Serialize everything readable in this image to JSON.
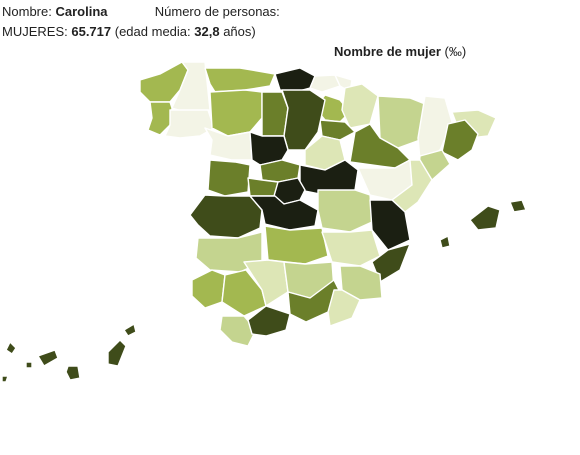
{
  "header": {
    "name_label": "Nombre:",
    "name_value": "Carolina",
    "count_label": "Número de personas:",
    "women_label": "MUJERES:",
    "women_value": "65.717",
    "age_prefix": "(edad media:",
    "age_value": "32,8",
    "age_suffix": "años)"
  },
  "legend": {
    "title_bold": "Nombre de mujer",
    "title_unit": "(‰)"
  },
  "colors": {
    "level1": "#f3f4e6",
    "level2": "#dde6b6",
    "level3": "#c4d48f",
    "level4": "#a3b850",
    "level5": "#6b7f2a",
    "level6": "#3f4c1a",
    "level7": "#1b1f12"
  },
  "regions": [
    {
      "name": "A Coruña",
      "level": 4
    },
    {
      "name": "Lugo",
      "level": 1
    },
    {
      "name": "Pontevedra",
      "level": 4
    },
    {
      "name": "Ourense",
      "level": 1
    },
    {
      "name": "Asturias",
      "level": 4
    },
    {
      "name": "Cantabria",
      "level": 7
    },
    {
      "name": "Vizcaya",
      "level": 1
    },
    {
      "name": "Guipúzcoa",
      "level": 1
    },
    {
      "name": "Álava",
      "level": 4
    },
    {
      "name": "Navarra",
      "level": 2
    },
    {
      "name": "La Rioja",
      "level": 5
    },
    {
      "name": "León",
      "level": 4
    },
    {
      "name": "Palencia",
      "level": 5
    },
    {
      "name": "Burgos",
      "level": 6
    },
    {
      "name": "Huesca",
      "level": 3
    },
    {
      "name": "Lleida",
      "level": 1
    },
    {
      "name": "Girona",
      "level": 2
    },
    {
      "name": "Barcelona",
      "level": 5
    },
    {
      "name": "Tarragona",
      "level": 3
    },
    {
      "name": "Zamora",
      "level": 1
    },
    {
      "name": "Valladolid",
      "level": 7
    },
    {
      "name": "Soria",
      "level": 2
    },
    {
      "name": "Zaragoza",
      "level": 5
    },
    {
      "name": "Salamanca",
      "level": 5
    },
    {
      "name": "Segovia",
      "level": 5
    },
    {
      "name": "Ávila",
      "level": 5
    },
    {
      "name": "Guadalajara",
      "level": 7
    },
    {
      "name": "Teruel",
      "level": 1
    },
    {
      "name": "Castellón",
      "level": 2
    },
    {
      "name": "Cáceres",
      "level": 6
    },
    {
      "name": "Madrid",
      "level": 7
    },
    {
      "name": "Toledo",
      "level": 7
    },
    {
      "name": "Cuenca",
      "level": 3
    },
    {
      "name": "Valencia",
      "level": 7
    },
    {
      "name": "Badajoz",
      "level": 3
    },
    {
      "name": "Ciudad Real",
      "level": 4
    },
    {
      "name": "Albacete",
      "level": 2
    },
    {
      "name": "Alicante",
      "level": 6
    },
    {
      "name": "Huelva",
      "level": 4
    },
    {
      "name": "Sevilla",
      "level": 4
    },
    {
      "name": "Córdoba",
      "level": 2
    },
    {
      "name": "Jaén",
      "level": 3
    },
    {
      "name": "Granada",
      "level": 5
    },
    {
      "name": "Murcia",
      "level": 3
    },
    {
      "name": "Almería",
      "level": 2
    },
    {
      "name": "Cádiz",
      "level": 3
    },
    {
      "name": "Málaga",
      "level": 6
    },
    {
      "name": "Baleares",
      "level": 6
    },
    {
      "name": "Canarias",
      "level": 6
    }
  ]
}
